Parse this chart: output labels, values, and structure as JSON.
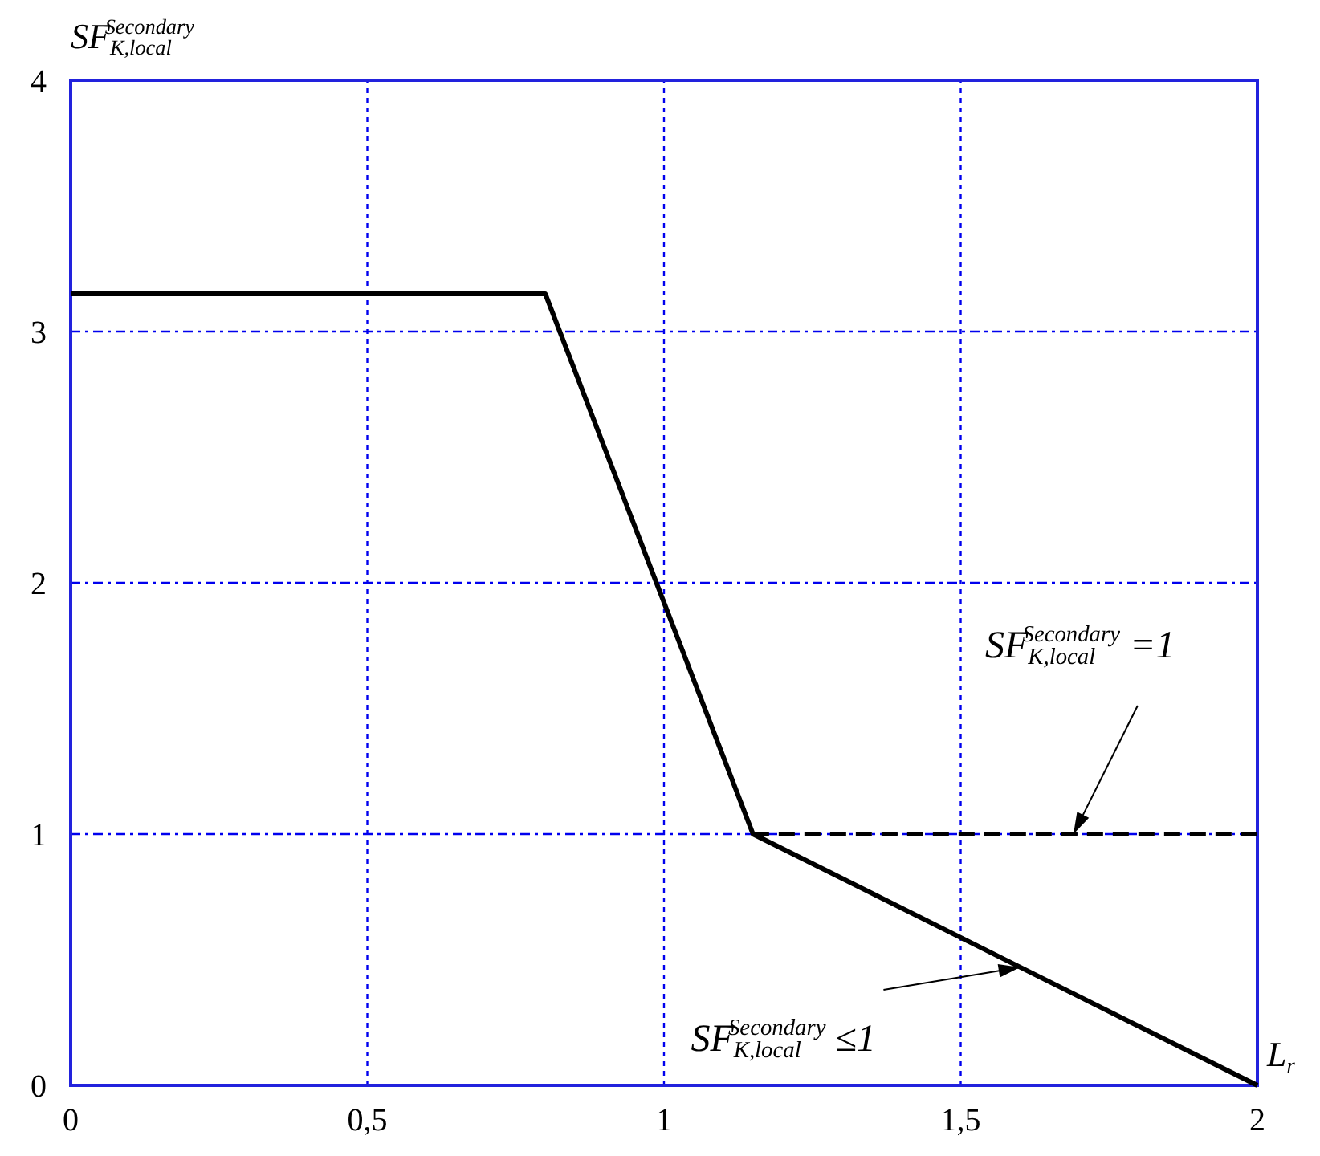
{
  "chart_data": {
    "type": "line",
    "xlabel": "L$_{r}$",
    "ylabel": "SF$_{K,local}$$^{Secondary}$",
    "xlim": [
      0,
      2
    ],
    "ylim": [
      0,
      4
    ],
    "xticks": [
      0,
      {
        "value": 0.5,
        "label": "0,5"
      },
      1,
      {
        "value": 1.5,
        "label": "1,5"
      },
      2
    ],
    "yticks": [
      0,
      1,
      2,
      3,
      4
    ],
    "grid": true,
    "series": [
      {
        "color": "#000000",
        "line_style": "solid",
        "x": [
          0,
          0.8,
          1.15,
          2
        ],
        "values": [
          3.15,
          3.15,
          1,
          0
        ]
      },
      {
        "color": "#000000",
        "line_style": "dashed",
        "x": [
          1.15,
          2
        ],
        "values": [
          1,
          1
        ]
      }
    ],
    "annotations": [
      {
        "text": "SF$_{K,local}$$^{Secondary}$ =1",
        "x": 1.69,
        "y": 1
      },
      {
        "text": "SF$_{K,local}$$^{Secondary}$ ≤1",
        "x": 1.6,
        "y": 0.47
      }
    ]
  }
}
